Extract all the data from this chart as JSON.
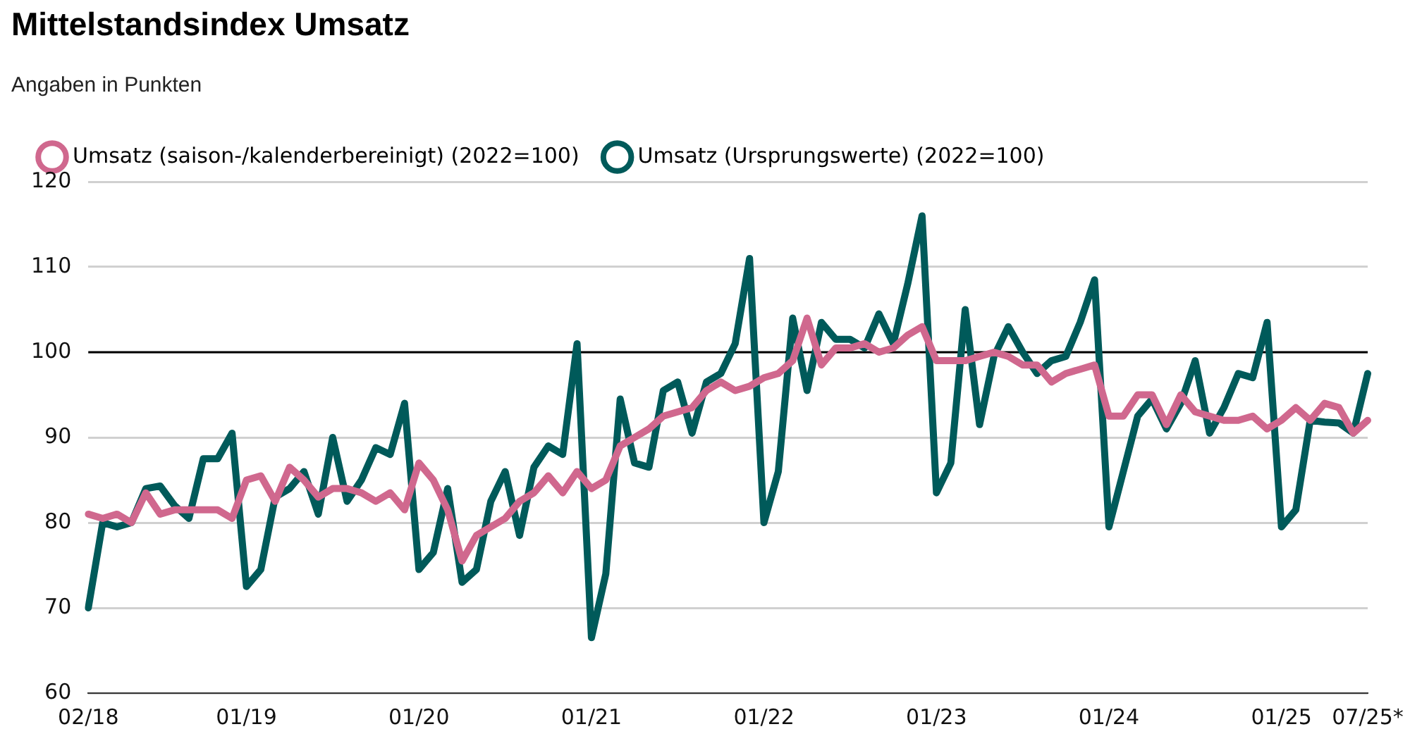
{
  "chart_data": {
    "type": "line",
    "title": "Mittelstandsindex Umsatz",
    "subtitle": "Angaben in Punkten",
    "categories": [
      "02/18",
      null,
      null,
      null,
      null,
      null,
      null,
      null,
      null,
      null,
      null,
      "01/19",
      null,
      null,
      null,
      null,
      null,
      null,
      null,
      null,
      null,
      null,
      null,
      "01/20",
      null,
      null,
      null,
      null,
      null,
      null,
      null,
      null,
      null,
      null,
      null,
      "01/21",
      null,
      null,
      null,
      null,
      null,
      null,
      null,
      null,
      null,
      null,
      null,
      "01/22",
      null,
      null,
      null,
      null,
      null,
      null,
      null,
      null,
      null,
      null,
      null,
      "01/23",
      null,
      null,
      null,
      null,
      null,
      null,
      null,
      null,
      null,
      null,
      null,
      "01/24",
      null,
      null,
      null,
      null,
      null,
      null,
      null,
      null,
      null,
      null,
      null,
      "01/25",
      null,
      null,
      null,
      null,
      null,
      "07/25*"
    ],
    "series": [
      {
        "name": "Umsatz (saison-/kalenderbereinigt) (2022=100)",
        "color": "#d0688e",
        "values": [
          81,
          80.5,
          81,
          80,
          83.5,
          81,
          81.5,
          81.5,
          81.5,
          81.5,
          80.5,
          85,
          85.5,
          82.5,
          86.5,
          85,
          83,
          84,
          84,
          83.5,
          82.5,
          83.5,
          81.5,
          87,
          85,
          81.5,
          75.5,
          78.5,
          79.5,
          80.5,
          82.5,
          83.5,
          85.5,
          83.5,
          86,
          84,
          85,
          89,
          90,
          91,
          92.5,
          93,
          93.5,
          95.5,
          96.5,
          95.5,
          96,
          97,
          97.5,
          99,
          104,
          98.5,
          100.5,
          100.5,
          101,
          100,
          100.5,
          102,
          103,
          99,
          99,
          99,
          99.5,
          100,
          99.5,
          98.5,
          98.5,
          96.5,
          97.5,
          98,
          98.5,
          92.5,
          92.5,
          95,
          95,
          91.5,
          95,
          93,
          92.5,
          92,
          92,
          92.5,
          91,
          92,
          93.5,
          92,
          94,
          93.5,
          90.5,
          92
        ]
      },
      {
        "name": "Umsatz (Ursprungswerte) (2022=100)",
        "color": "#005a5a",
        "values": [
          70,
          80,
          79.5,
          80,
          84,
          84.3,
          82,
          80.5,
          87.5,
          87.5,
          90.5,
          72.5,
          74.5,
          83,
          84,
          86,
          81,
          90,
          82.5,
          85,
          88.8,
          88,
          94,
          74.5,
          76.5,
          84,
          73,
          74.5,
          82.5,
          86,
          78.5,
          86.5,
          89,
          88,
          101,
          66.5,
          74,
          94.5,
          87,
          86.5,
          95.5,
          96.5,
          90.5,
          96.5,
          97.5,
          101,
          111,
          80,
          86,
          104,
          95.5,
          103.5,
          101.5,
          101.5,
          100.5,
          104.5,
          101,
          108,
          116,
          83.5,
          87,
          105,
          91.5,
          99.5,
          103,
          100,
          97.5,
          99,
          99.5,
          103.5,
          108.5,
          79.5,
          86,
          92.5,
          94.5,
          91,
          94,
          99,
          90.5,
          93.5,
          97.5,
          97,
          103.5,
          79.5,
          81.5,
          92,
          91.8,
          91.7,
          90.5,
          97.5
        ]
      }
    ],
    "ylim": [
      60,
      120
    ],
    "yticks": [
      60,
      70,
      80,
      90,
      100,
      110,
      120
    ],
    "grid": "y",
    "legend": "top left",
    "marker": "none",
    "ref_lines": [
      {
        "axis": "y",
        "value": 100,
        "color": "#000000"
      }
    ]
  }
}
